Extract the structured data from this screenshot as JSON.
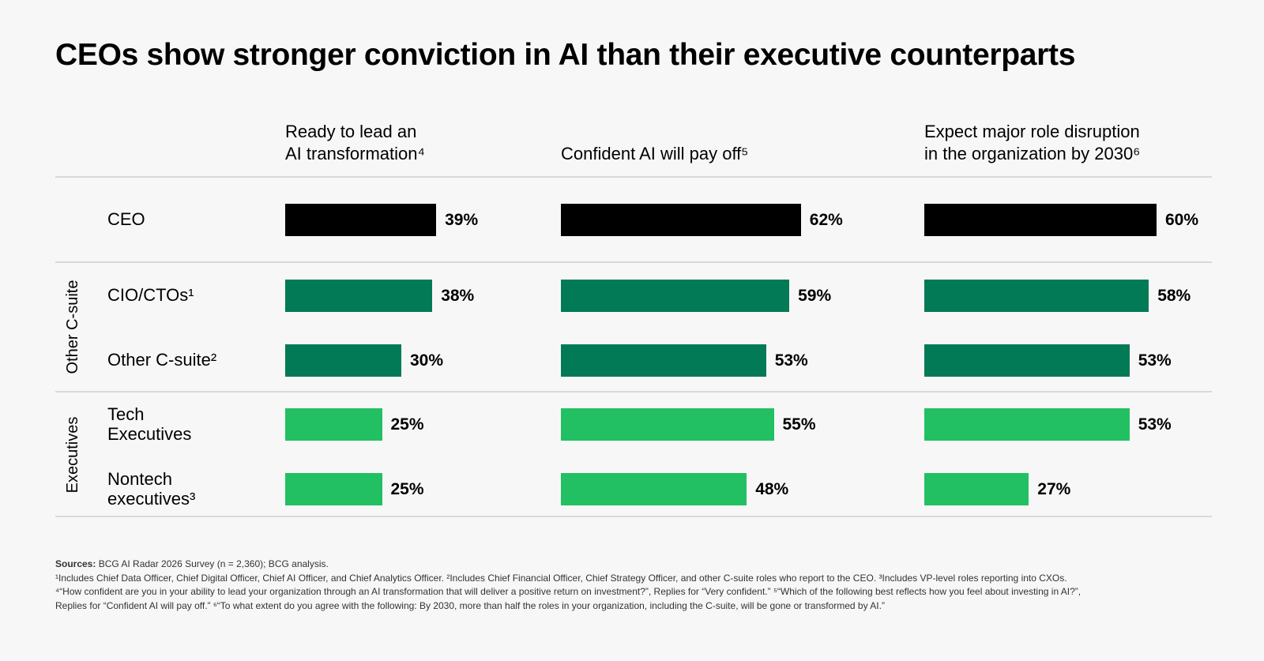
{
  "title": "CEOs show stronger conviction in AI than their executive counterparts",
  "colors": {
    "ceo": "#000000",
    "other_csuite": "#027a55",
    "executives": "#22c062",
    "rule": "#d9d9d9",
    "background": "#f7f7f7"
  },
  "group_labels": {
    "other_csuite": "Other C-suite",
    "executives": "Executives"
  },
  "chart_data": {
    "type": "bar",
    "orientation": "horizontal",
    "xlim": [
      0,
      100
    ],
    "panels": [
      {
        "title": "Ready to lead an\nAI transformation⁴"
      },
      {
        "title": "Confident AI will pay off⁵"
      },
      {
        "title": "Expect major role disruption\nin the organization by 2030⁶"
      }
    ],
    "rows": [
      {
        "label": "CEO",
        "group": "ceo",
        "values": [
          39,
          62,
          60
        ],
        "value_labels": [
          "39%",
          "62%",
          "60%"
        ]
      },
      {
        "label": "CIO/CTOs¹",
        "group": "other_csuite",
        "values": [
          38,
          59,
          58
        ],
        "value_labels": [
          "38%",
          "59%",
          "58%"
        ]
      },
      {
        "label": "Other C-suite²",
        "group": "other_csuite",
        "values": [
          30,
          53,
          53
        ],
        "value_labels": [
          "30%",
          "53%",
          "53%"
        ]
      },
      {
        "label": "Tech\nExecutives",
        "group": "executives",
        "values": [
          25,
          55,
          53
        ],
        "value_labels": [
          "25%",
          "55%",
          "53%"
        ]
      },
      {
        "label": "Nontech\nexecutives³",
        "group": "executives",
        "values": [
          25,
          48,
          27
        ],
        "value_labels": [
          "25%",
          "48%",
          "27%"
        ]
      }
    ]
  },
  "footnotes": {
    "sources_label": "Sources:",
    "sources_text": " BCG AI Radar 2026 Survey (n = 2,360); BCG analysis.",
    "line2": "¹Includes Chief Data Officer, Chief Digital Officer, Chief AI Officer, and Chief Analytics Officer. ²Includes Chief Financial Officer, Chief Strategy Officer, and other C-suite roles who report to the CEO. ³Includes VP-level roles reporting into CXOs.",
    "line3": "⁴“How confident are you in your ability to lead your organization through an AI transformation that will deliver a positive return on investment?”, Replies for “Very confident.” ⁵“Which of the following best reflects how you feel about investing in AI?”,",
    "line4": "Replies for “Confident AI will pay off.” ⁶“To what extent do you agree with the following: By 2030, more than half the roles in your organization, including the C-suite, will be gone or transformed by AI.”"
  }
}
